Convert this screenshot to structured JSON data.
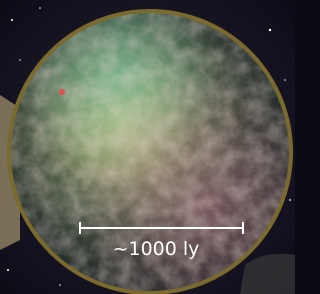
{
  "scale_label": "~1000 ly"
}
